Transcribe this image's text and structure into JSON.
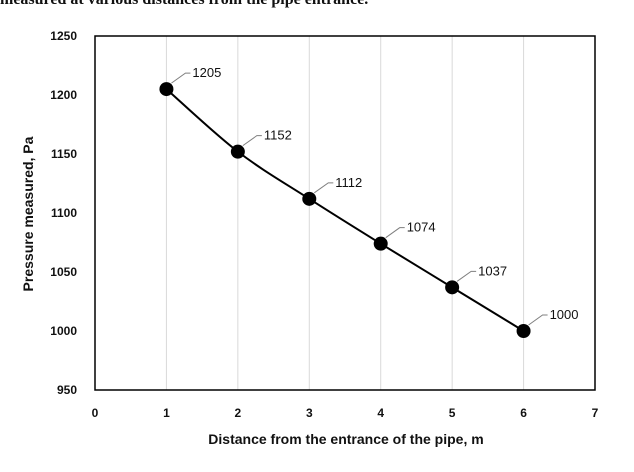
{
  "page": {
    "top_text": "measured at various distances from the pipe entrance."
  },
  "chart_data": {
    "type": "line",
    "title": "",
    "xlabel": "Distance from the entrance of the pipe, m",
    "ylabel": "Pressure measured, Pa",
    "xlim": [
      0,
      7
    ],
    "ylim": [
      950,
      1250
    ],
    "x_ticks": [
      0,
      1,
      2,
      3,
      4,
      5,
      6,
      7
    ],
    "y_ticks": [
      950,
      1000,
      1050,
      1100,
      1150,
      1200,
      1250
    ],
    "grid": "vertical",
    "legend": "none",
    "series": [
      {
        "x": [
          1,
          2,
          3,
          4,
          5,
          6
        ],
        "values": [
          1205,
          1152,
          1112,
          1074,
          1037,
          1000
        ],
        "labels": [
          "1205",
          "1152",
          "1112",
          "1074",
          "1037",
          "1000"
        ],
        "color": "#000000"
      }
    ]
  }
}
